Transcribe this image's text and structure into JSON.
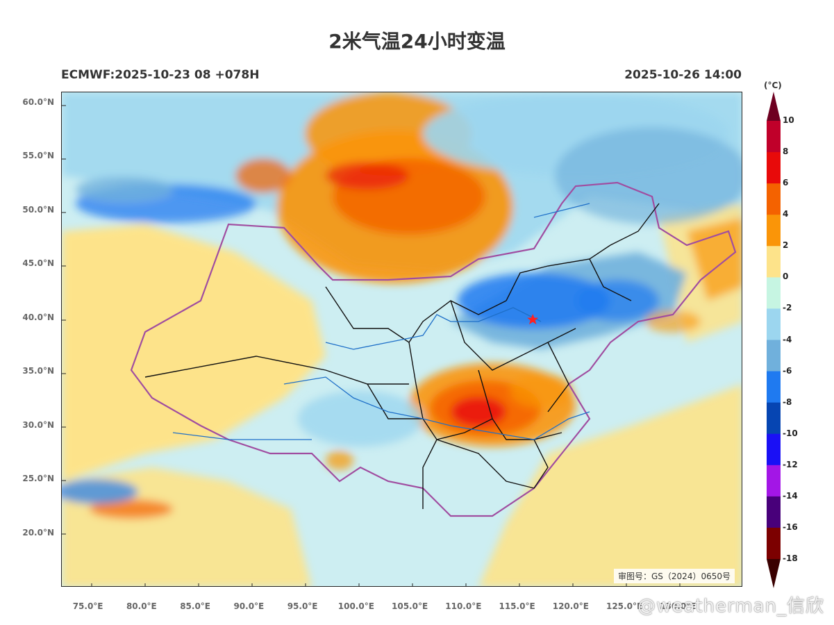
{
  "header": {
    "title": "2米气温24小时变温",
    "model_run": "ECMWF:2025-10-23 08 +078H",
    "valid_time": "2025-10-26 14:00"
  },
  "map": {
    "lon_range": [
      72.5,
      136.0
    ],
    "lat_range": [
      15.0,
      61.0
    ],
    "approval_number": "审图号：GS（2024）0650号",
    "lat_ticks": [
      {
        "value": 60,
        "label": "60.0°N"
      },
      {
        "value": 55,
        "label": "55.0°N"
      },
      {
        "value": 50,
        "label": "50.0°N"
      },
      {
        "value": 45,
        "label": "45.0°N"
      },
      {
        "value": 40,
        "label": "40.0°N"
      },
      {
        "value": 35,
        "label": "35.0°N"
      },
      {
        "value": 30,
        "label": "30.0°N"
      },
      {
        "value": 25,
        "label": "25.0°N"
      },
      {
        "value": 20,
        "label": "20.0°N"
      }
    ],
    "lon_ticks": [
      {
        "value": 75,
        "label": "75.0°E"
      },
      {
        "value": 80,
        "label": "80.0°E"
      },
      {
        "value": 85,
        "label": "85.0°E"
      },
      {
        "value": 90,
        "label": "90.0°E"
      },
      {
        "value": 95,
        "label": "95.0°E"
      },
      {
        "value": 100,
        "label": "100.0°E"
      },
      {
        "value": 105,
        "label": "105.0°E"
      },
      {
        "value": 110,
        "label": "110.0°E"
      },
      {
        "value": 115,
        "label": "115.0°E"
      },
      {
        "value": 120,
        "label": "120.0°E"
      },
      {
        "value": 125,
        "label": "125.0°E"
      },
      {
        "value": 130,
        "label": "130.0°E"
      }
    ],
    "marker": {
      "lon": 116.4,
      "lat": 39.9,
      "icon": "red-star-icon",
      "color": "#ff2020"
    }
  },
  "colorbar": {
    "unit": "(°C)",
    "levels": [
      10,
      8,
      6,
      4,
      2,
      0,
      -2,
      -4,
      -6,
      -8,
      -10,
      -12,
      -14,
      -16,
      -18
    ],
    "colors": [
      "#6e0021",
      "#c0002a",
      "#e80a0a",
      "#f46200",
      "#fa9508",
      "#fde38a",
      "#c6f5e2",
      "#9cd6ef",
      "#70b0dc",
      "#1f7af0",
      "#0645b2",
      "#1a10f5",
      "#a316e6",
      "#48007a",
      "#7c0000",
      "#3a0000"
    ]
  },
  "watermark": "@weatherman_信欣"
}
